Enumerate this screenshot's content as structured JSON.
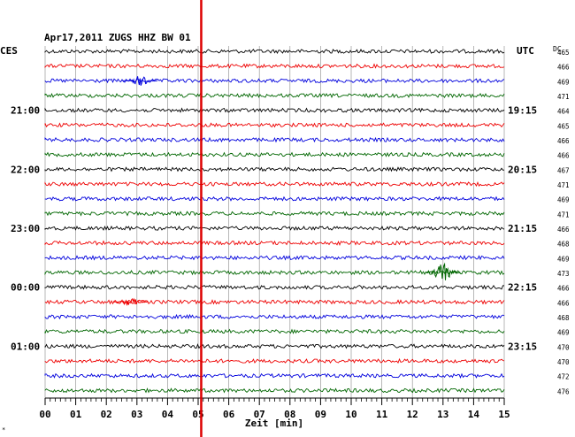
{
  "chart_data": {
    "type": "line",
    "title": "Apr17,2011   ZUGS HHZ BW 01",
    "left_zone_label": "CES",
    "right_zone_label": "UTC",
    "dc_label": "DC",
    "xlabel": "Zeit [min]",
    "xlim": [
      0,
      15
    ],
    "x_ticks": [
      "00",
      "01",
      "02",
      "03",
      "04",
      "05",
      "06",
      "07",
      "08",
      "09",
      "10",
      "11",
      "12",
      "13",
      "14",
      "15"
    ],
    "trace_colors": [
      "#000000",
      "#ee0000",
      "#0000dd",
      "#006600"
    ],
    "left_hour_labels": [
      {
        "trace": 4,
        "label": "21:00"
      },
      {
        "trace": 8,
        "label": "22:00"
      },
      {
        "trace": 12,
        "label": "23:00"
      },
      {
        "trace": 16,
        "label": "00:00"
      },
      {
        "trace": 20,
        "label": "01:00"
      }
    ],
    "right_hour_labels": [
      {
        "trace": 4,
        "label": "19:15"
      },
      {
        "trace": 8,
        "label": "20:15"
      },
      {
        "trace": 12,
        "label": "21:15"
      },
      {
        "trace": 16,
        "label": "22:15"
      },
      {
        "trace": 20,
        "label": "23:15"
      }
    ],
    "dc_values": [
      "465",
      "466",
      "469",
      "471",
      "464",
      "465",
      "466",
      "466",
      "467",
      "471",
      "469",
      "471",
      "466",
      "468",
      "469",
      "473",
      "466",
      "466",
      "468",
      "469",
      "470",
      "470",
      "472",
      "476"
    ],
    "marker_time_min": 5.1,
    "marker_color": "#dd0000",
    "events": [
      {
        "trace": 2,
        "time_min": 3.1,
        "amplitude": "medium"
      },
      {
        "trace": 15,
        "time_min": 13.0,
        "amplitude": "large"
      },
      {
        "trace": 17,
        "time_min": 2.8,
        "amplitude": "small"
      }
    ],
    "grid": true
  }
}
